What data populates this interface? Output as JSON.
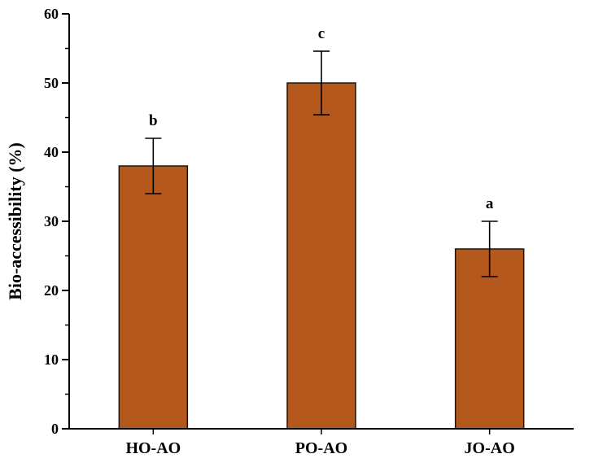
{
  "chart_data": {
    "type": "bar",
    "categories": [
      "HO-AO",
      "PO-AO",
      "JO-AO"
    ],
    "values": [
      38,
      50,
      26
    ],
    "errors": [
      4,
      4.6,
      4
    ],
    "sig_letters": [
      "b",
      "c",
      "a"
    ],
    "title": "",
    "xlabel": "",
    "ylabel": "Bio-accessibility (%)",
    "ylim": [
      0,
      60
    ],
    "y_major_step": 10,
    "y_minor_step": 5,
    "grid": false,
    "legend_position": "none",
    "bar_color": "#b4591b",
    "bar_edge_color": "#1f1208",
    "error_bar_color": "#000000",
    "axis_color": "#000000"
  }
}
